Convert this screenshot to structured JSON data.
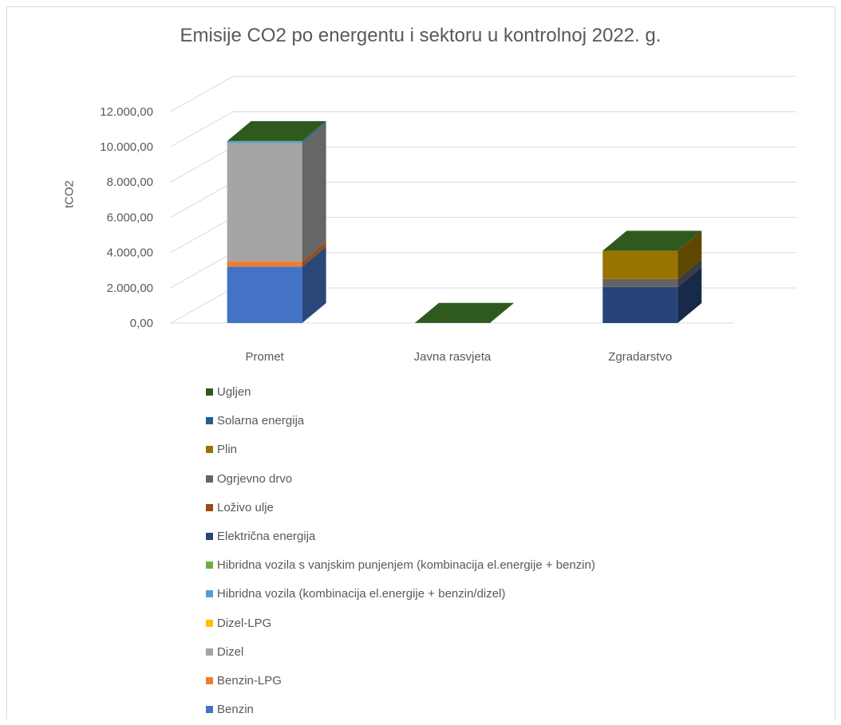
{
  "chart_data": {
    "type": "bar",
    "variant": "3d-stacked-column",
    "title": "Emisije CO2 po energentu i sektoru u kontrolnoj 2022. g.",
    "ylabel": "tCO2",
    "xlabel": "",
    "ylim": [
      0,
      12000
    ],
    "y_ticks": [
      "0,00",
      "2.000,00",
      "4.000,00",
      "6.000,00",
      "8.000,00",
      "10.000,00",
      "12.000,00"
    ],
    "grid": true,
    "legend_position": "bottom",
    "categories": [
      "Promet",
      "Javna rasvjeta",
      "Zgradarstvo"
    ],
    "series": [
      {
        "name": "Benzin",
        "color": "#4472c4",
        "values": [
          3200,
          0,
          0
        ]
      },
      {
        "name": "Benzin-LPG",
        "color": "#ed7d31",
        "values": [
          300,
          0,
          0
        ]
      },
      {
        "name": "Dizel",
        "color": "#a5a5a5",
        "values": [
          6700,
          0,
          0
        ]
      },
      {
        "name": "Dizel-LPG",
        "color": "#ffc000",
        "values": [
          0,
          0,
          0
        ]
      },
      {
        "name": "Hibridna vozila (kombinacija el.energije + benzin/dizel)",
        "color": "#5b9bd5",
        "values": [
          100,
          0,
          0
        ]
      },
      {
        "name": "Hibridna vozila s vanjskim punjenjem (kombinacija el.energije + benzin)",
        "color": "#70ad47",
        "values": [
          20,
          0,
          0
        ]
      },
      {
        "name": "Električna energija",
        "color": "#264478",
        "values": [
          0,
          10,
          2050
        ]
      },
      {
        "name": "Loživo ulje",
        "color": "#9e480e",
        "values": [
          0,
          0,
          0
        ]
      },
      {
        "name": "Ogrjevno drvo",
        "color": "#636363",
        "values": [
          0,
          0,
          450
        ]
      },
      {
        "name": "Plin",
        "color": "#997300",
        "values": [
          0,
          0,
          1600
        ]
      },
      {
        "name": "Solarna energija",
        "color": "#255e91",
        "values": [
          0,
          0,
          0
        ]
      },
      {
        "name": "Ugljen",
        "color": "#2e5a1e",
        "values": [
          0,
          0,
          0
        ]
      }
    ]
  }
}
